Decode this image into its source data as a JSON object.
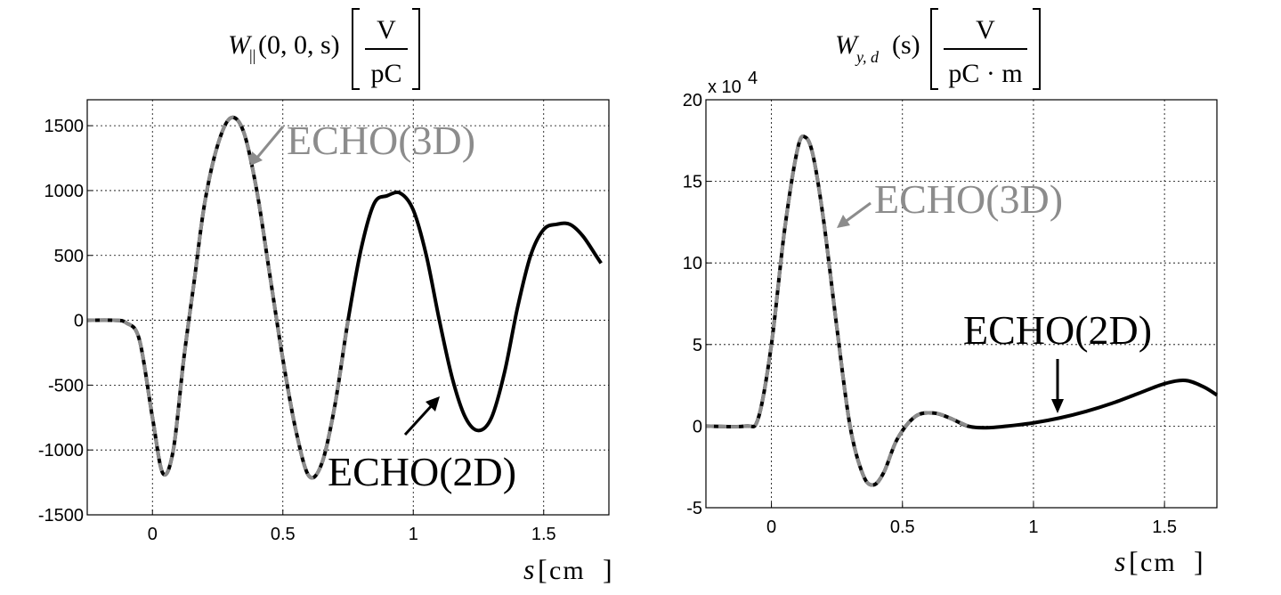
{
  "chart_data": [
    {
      "type": "line",
      "title_func": "W",
      "title_sub": "||",
      "title_args": "(0, 0, s)",
      "unit_num": "V",
      "unit_den": "pC",
      "xlabel_var": "s",
      "xlabel_unit": "cm",
      "xlim": [
        -0.25,
        1.75
      ],
      "ylim": [
        -1500,
        1700
      ],
      "xticks": [
        0,
        0.5,
        1,
        1.5
      ],
      "xtick_labels": [
        "0",
        "0.5",
        "1",
        "1.5"
      ],
      "yticks": [
        -1500,
        -1000,
        -500,
        0,
        500,
        1000,
        1500
      ],
      "ytick_labels": [
        "-1500",
        "-1000",
        "-500",
        "0",
        "500",
        "1000",
        "1500"
      ],
      "grid": true,
      "series": [
        {
          "name": "ECHO(2D)",
          "color": "#000000",
          "x": [
            -0.25,
            -0.15,
            -0.1,
            -0.05,
            0.0,
            0.04,
            0.08,
            0.12,
            0.16,
            0.2,
            0.25,
            0.3,
            0.35,
            0.4,
            0.45,
            0.5,
            0.55,
            0.6,
            0.65,
            0.7,
            0.75,
            0.8,
            0.85,
            0.9,
            0.95,
            1.0,
            1.05,
            1.1,
            1.15,
            1.2,
            1.25,
            1.3,
            1.35,
            1.4,
            1.45,
            1.5,
            1.55,
            1.6,
            1.65,
            1.7,
            1.72
          ],
          "y": [
            0,
            0,
            -20,
            -150,
            -750,
            -1180,
            -1000,
            -300,
            300,
            900,
            1350,
            1560,
            1450,
            1000,
            350,
            -300,
            -850,
            -1200,
            -1100,
            -650,
            0,
            550,
            900,
            960,
            980,
            850,
            500,
            0,
            -450,
            -750,
            -850,
            -750,
            -400,
            100,
            500,
            700,
            740,
            740,
            650,
            500,
            440
          ]
        },
        {
          "name": "ECHO(3D)",
          "color": "#8c8c8c",
          "x": [
            -0.25,
            -0.15,
            -0.1,
            -0.05,
            0.0,
            0.04,
            0.08,
            0.12,
            0.16,
            0.2,
            0.25,
            0.3,
            0.35,
            0.4,
            0.45,
            0.5,
            0.55,
            0.6,
            0.65,
            0.7,
            0.75
          ],
          "y": [
            0,
            0,
            -20,
            -150,
            -750,
            -1180,
            -1000,
            -300,
            300,
            900,
            1350,
            1560,
            1450,
            1000,
            350,
            -300,
            -850,
            -1200,
            -1100,
            -650,
            0
          ]
        }
      ]
    },
    {
      "type": "line",
      "title_func": "W",
      "title_sub": "y, d",
      "title_args": "(s)",
      "unit_num": "V",
      "unit_den": "pC · m",
      "exponent_base": "x 10",
      "exponent_power": "4",
      "xlabel_var": "s",
      "xlabel_unit": "cm",
      "xlim": [
        -0.25,
        1.7
      ],
      "ylim": [
        -5,
        20
      ],
      "xticks": [
        0,
        0.5,
        1,
        1.5
      ],
      "xtick_labels": [
        "0",
        "0.5",
        "1",
        "1.5"
      ],
      "yticks": [
        -5,
        0,
        5,
        10,
        15,
        20
      ],
      "ytick_labels": [
        "-5",
        "0",
        "5",
        "10",
        "15",
        "20"
      ],
      "grid": true,
      "series": [
        {
          "name": "ECHO(2D)",
          "color": "#000000",
          "x": [
            -0.25,
            -0.1,
            -0.05,
            0.0,
            0.05,
            0.1,
            0.13,
            0.16,
            0.2,
            0.25,
            0.3,
            0.35,
            0.39,
            0.43,
            0.48,
            0.55,
            0.62,
            0.68,
            0.75,
            0.82,
            0.9,
            1.0,
            1.1,
            1.2,
            1.3,
            1.4,
            1.5,
            1.58,
            1.65,
            1.7
          ],
          "y": [
            0,
            0,
            0.5,
            5.0,
            12.0,
            17.0,
            17.7,
            16.5,
            12.5,
            6.0,
            0.0,
            -3.0,
            -3.6,
            -2.8,
            -0.8,
            0.6,
            0.8,
            0.5,
            0.0,
            -0.1,
            0.0,
            0.2,
            0.5,
            0.9,
            1.4,
            2.0,
            2.6,
            2.8,
            2.4,
            1.9
          ]
        },
        {
          "name": "ECHO(3D)",
          "color": "#8c8c8c",
          "x": [
            -0.25,
            -0.1,
            -0.05,
            0.0,
            0.05,
            0.1,
            0.13,
            0.16,
            0.2,
            0.25,
            0.3,
            0.35,
            0.39,
            0.43,
            0.48,
            0.55,
            0.62,
            0.68,
            0.75
          ],
          "y": [
            0,
            0,
            0.5,
            5.0,
            12.0,
            17.0,
            17.7,
            16.5,
            12.5,
            6.0,
            0.0,
            -3.0,
            -3.6,
            -2.8,
            -0.8,
            0.6,
            0.8,
            0.5,
            0.0
          ]
        }
      ]
    }
  ]
}
